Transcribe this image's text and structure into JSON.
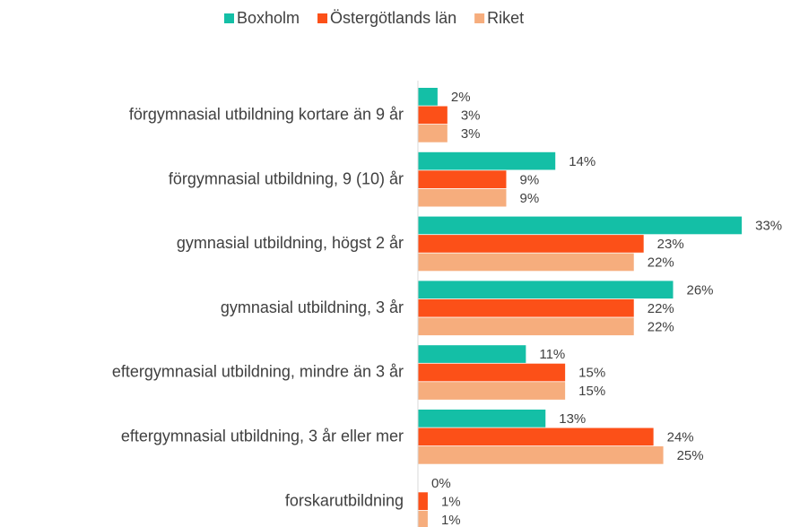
{
  "chart_data": {
    "type": "bar",
    "orientation": "horizontal",
    "categories": [
      "förgymnasial utbildning kortare än 9 år",
      "förgymnasial utbildning, 9 (10) år",
      "gymnasial utbildning, högst 2 år",
      "gymnasial utbildning, 3 år",
      "eftergymnasial utbildning, mindre än 3 år",
      "eftergymnasial utbildning, 3 år eller mer",
      "forskarutbildning"
    ],
    "series": [
      {
        "name": "Boxholm",
        "color": "#14bfa6",
        "values": [
          2,
          14,
          33,
          26,
          11,
          13,
          0
        ],
        "value_labels": [
          "2%",
          "14%",
          "33%",
          "26%",
          "11%",
          "13%",
          "0%"
        ]
      },
      {
        "name": "Östergötlands län",
        "color": "#fc5018",
        "values": [
          3,
          9,
          23,
          22,
          15,
          24,
          1
        ],
        "value_labels": [
          "3%",
          "9%",
          "23%",
          "22%",
          "15%",
          "24%",
          "1%"
        ]
      },
      {
        "name": "Riket",
        "color": "#f6ad7d",
        "values": [
          3,
          9,
          22,
          22,
          15,
          25,
          1
        ],
        "value_labels": [
          "3%",
          "9%",
          "22%",
          "22%",
          "15%",
          "25%",
          "1%"
        ]
      }
    ],
    "xlim": [
      0,
      35
    ],
    "legend": "top"
  }
}
